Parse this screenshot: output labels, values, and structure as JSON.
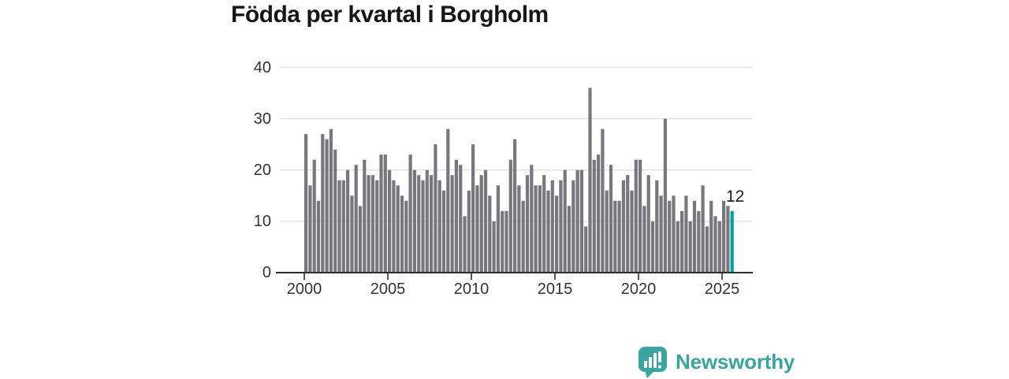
{
  "title": "Födda per kvartal i Borgholm",
  "annotation": {
    "last_value_label": "12"
  },
  "footer": {
    "brand": "Newsworthy"
  },
  "colors": {
    "bar": "#77777d",
    "highlight": "#00a2a2",
    "logo": "#38a5a1",
    "grid": "#e3e3e3",
    "axis": "#2e2e2e",
    "tick_text": "#333333",
    "title_text": "#161616"
  },
  "chart_data": {
    "type": "bar",
    "title": "Födda per kvartal i Borgholm",
    "xlabel": "",
    "ylabel": "",
    "x_unit": "quarter",
    "x_start": "2000-Q1",
    "x_end": "2025-Q3",
    "x_tick_years": [
      2000,
      2005,
      2010,
      2015,
      2020,
      2025
    ],
    "x_tick_labels": [
      "2000",
      "2005",
      "2010",
      "2015",
      "2020",
      "2025"
    ],
    "y_ticks": [
      0,
      10,
      20,
      30,
      40
    ],
    "y_tick_labels": [
      "0",
      "10",
      "20",
      "30",
      "40"
    ],
    "ylim": [
      0,
      40
    ],
    "grid": "horizontal",
    "legend": "none",
    "highlight_last_bar": true,
    "last_bar_label": "12",
    "values": [
      27,
      17,
      22,
      14,
      27,
      26,
      28,
      24,
      18,
      18,
      20,
      15,
      21,
      13,
      22,
      19,
      19,
      18,
      23,
      23,
      20,
      18,
      17,
      15,
      14,
      23,
      20,
      19,
      18,
      20,
      19,
      25,
      18,
      16,
      28,
      19,
      22,
      21,
      11,
      16,
      25,
      17,
      19,
      20,
      15,
      10,
      17,
      12,
      12,
      22,
      26,
      17,
      14,
      19,
      21,
      17,
      17,
      19,
      16,
      18,
      15,
      18,
      20,
      13,
      18,
      20,
      20,
      9,
      36,
      22,
      23,
      28,
      16,
      21,
      14,
      14,
      18,
      19,
      16,
      22,
      22,
      13,
      19,
      10,
      18,
      15,
      30,
      14,
      15,
      10,
      12,
      15,
      10,
      14,
      12,
      17,
      9,
      14,
      11,
      10,
      14,
      13,
      12
    ]
  }
}
